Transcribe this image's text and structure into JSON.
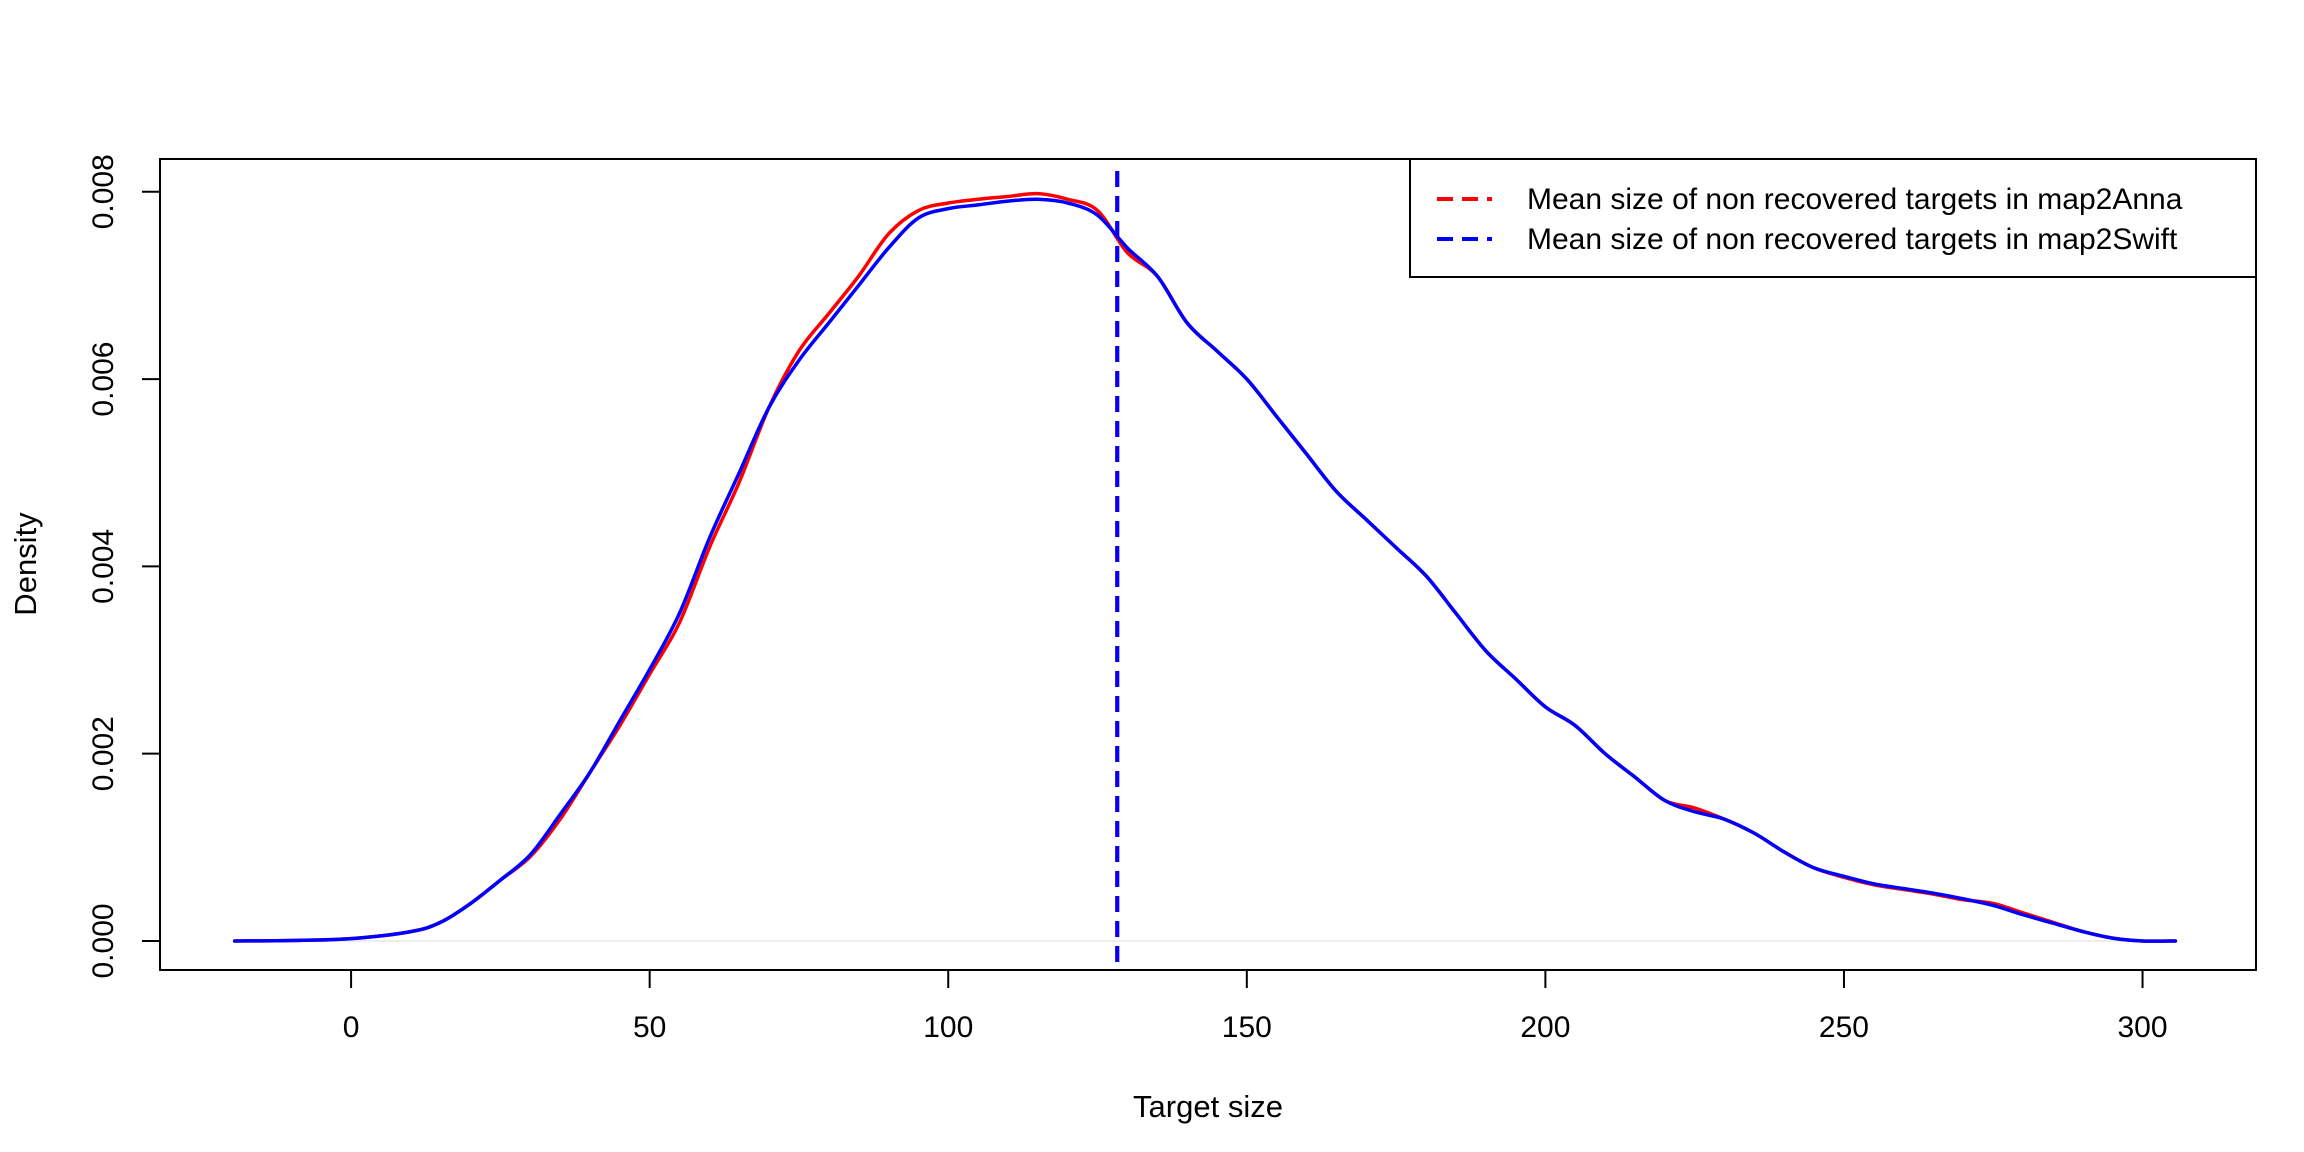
{
  "chart_data": {
    "type": "line",
    "title": "",
    "xlabel": "Target size",
    "ylabel": "Density",
    "xlim": [
      -32,
      319
    ],
    "ylim": [
      -0.00031,
      0.00835
    ],
    "xticks": [
      0,
      50,
      100,
      150,
      200,
      250,
      300
    ],
    "yticks": [
      0.0,
      0.002,
      0.004,
      0.006,
      0.008
    ],
    "ytick_labels": [
      "0.000",
      "0.002",
      "0.004",
      "0.006",
      "0.008"
    ],
    "grid": false,
    "baseline": 0,
    "series": [
      {
        "color": "#ff0000",
        "x": [
          -19.5,
          -10,
          0,
          10,
          15,
          20,
          25,
          30,
          35,
          40,
          45,
          50,
          55,
          60,
          65,
          70,
          75,
          80,
          85,
          90,
          95,
          100,
          105,
          110,
          115,
          120,
          125,
          130,
          135,
          140,
          145,
          150,
          155,
          160,
          165,
          170,
          175,
          180,
          185,
          190,
          195,
          200,
          205,
          210,
          215,
          220,
          225,
          230,
          235,
          240,
          245,
          250,
          255,
          260,
          265,
          270,
          275,
          280,
          285,
          290,
          295,
          300,
          305.5
        ],
        "y": [
          0.0,
          5e-06,
          2.5e-05,
          0.0001,
          0.0002,
          0.0004,
          0.00065,
          0.0009,
          0.0013,
          0.0018,
          0.0023,
          0.00285,
          0.0034,
          0.0042,
          0.0049,
          0.0057,
          0.0063,
          0.0067,
          0.0071,
          0.00755,
          0.0078,
          0.00788,
          0.00792,
          0.00795,
          0.00798,
          0.00792,
          0.0078,
          0.00735,
          0.0071,
          0.0066,
          0.0063,
          0.006,
          0.0056,
          0.0052,
          0.0048,
          0.0045,
          0.0042,
          0.0039,
          0.0035,
          0.0031,
          0.0028,
          0.0025,
          0.0023,
          0.002,
          0.00175,
          0.0015,
          0.00142,
          0.0013,
          0.00115,
          0.00095,
          0.00078,
          0.00068,
          0.0006,
          0.00055,
          0.0005,
          0.00044,
          0.0004,
          0.0003,
          0.0002,
          0.0001,
          3e-05,
          0.0,
          0.0
        ]
      },
      {
        "color": "#0000ff",
        "x": [
          -19.5,
          -10,
          0,
          10,
          15,
          20,
          25,
          30,
          35,
          40,
          45,
          50,
          55,
          60,
          65,
          70,
          75,
          80,
          85,
          90,
          95,
          100,
          105,
          110,
          115,
          120,
          125,
          130,
          135,
          140,
          145,
          150,
          155,
          160,
          165,
          170,
          175,
          180,
          185,
          190,
          195,
          200,
          205,
          210,
          215,
          220,
          225,
          230,
          235,
          240,
          245,
          250,
          255,
          260,
          265,
          270,
          275,
          280,
          285,
          290,
          295,
          300,
          305.5
        ],
        "y": [
          0.0,
          5e-06,
          2.5e-05,
          0.0001,
          0.0002,
          0.0004,
          0.00065,
          0.00092,
          0.00135,
          0.0018,
          0.00235,
          0.0029,
          0.0035,
          0.0043,
          0.005,
          0.0057,
          0.0062,
          0.0066,
          0.007,
          0.0074,
          0.00772,
          0.00782,
          0.00786,
          0.0079,
          0.00792,
          0.00788,
          0.00775,
          0.0074,
          0.0071,
          0.0066,
          0.0063,
          0.006,
          0.0056,
          0.0052,
          0.0048,
          0.0045,
          0.0042,
          0.0039,
          0.0035,
          0.0031,
          0.0028,
          0.0025,
          0.0023,
          0.002,
          0.00175,
          0.0015,
          0.00138,
          0.0013,
          0.00115,
          0.00095,
          0.00078,
          0.00069,
          0.00061,
          0.00056,
          0.00051,
          0.00045,
          0.00038,
          0.00028,
          0.00019,
          0.0001,
          3e-05,
          0.0,
          0.0
        ]
      }
    ],
    "vlines": [
      {
        "x": 128.3,
        "color": "#ff0000",
        "style": "dashed"
      },
      {
        "x": 128.3,
        "color": "#0000ff",
        "style": "dashed"
      }
    ],
    "legend": {
      "placement": "top-right",
      "entries": [
        {
          "label": "Mean size of non recovered targets in map2Anna",
          "color": "#ff0000",
          "style": "dashed"
        },
        {
          "label": "Mean size of non recovered targets in map2Swift",
          "color": "#0000ff",
          "style": "dashed"
        }
      ]
    }
  }
}
